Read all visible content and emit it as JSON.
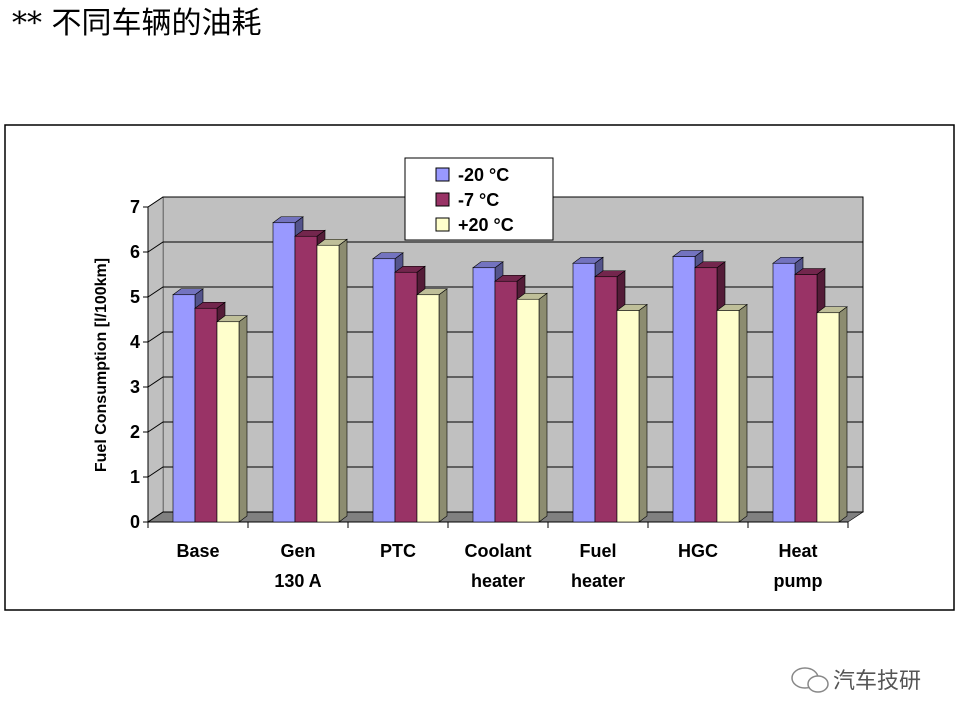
{
  "page_title": "** 不同车辆的油耗",
  "watermark": "汽车技研",
  "chart_data": {
    "type": "bar3d",
    "y_label": "Fuel Consumption [l/100km]",
    "categories": [
      "Base",
      "Gen 130 A",
      "PTC",
      "Coolant heater",
      "Fuel heater",
      "HGC",
      "Heat pump"
    ],
    "series": [
      {
        "name": "-20 °C",
        "color": "#9999ff",
        "values": [
          5.05,
          6.65,
          5.85,
          5.65,
          5.75,
          5.9,
          5.75
        ]
      },
      {
        "name": "-7 °C",
        "color": "#993366",
        "values": [
          4.75,
          6.35,
          5.55,
          5.35,
          5.45,
          5.65,
          5.5
        ]
      },
      {
        "name": "+20 °C",
        "color": "#ffffcc",
        "values": [
          4.45,
          6.15,
          5.05,
          4.95,
          4.7,
          4.7,
          4.65
        ]
      }
    ],
    "ylim": [
      0,
      7
    ],
    "yticks": [
      0,
      1,
      2,
      3,
      4,
      5,
      6,
      7
    ],
    "grid": true,
    "legend": "top"
  }
}
